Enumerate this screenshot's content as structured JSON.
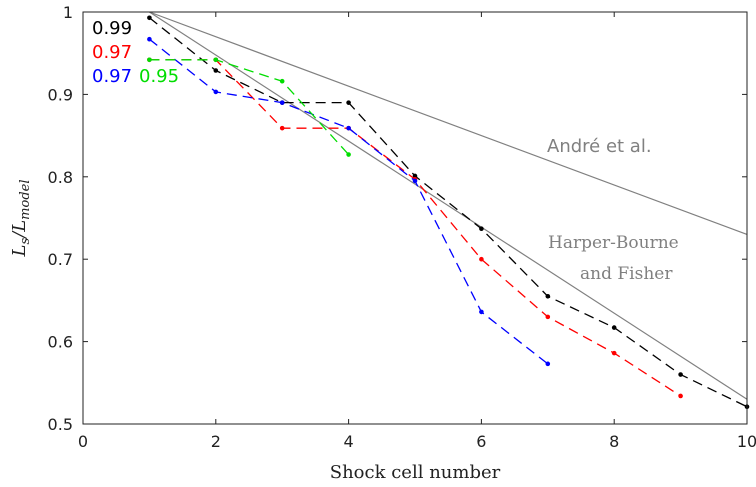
{
  "chart_data": {
    "type": "line",
    "xlabel": "Shock cell number",
    "ylabel": "Ls/Lmodel",
    "xlim": [
      0,
      10
    ],
    "ylim": [
      0.5,
      1
    ],
    "xticks": [
      "0",
      "2",
      "4",
      "6",
      "8",
      "10"
    ],
    "yticks": [
      "0.5",
      "0.6",
      "0.7",
      "0.8",
      "0.9",
      "1"
    ],
    "grid": false,
    "legend_position": "top-left",
    "series": [
      {
        "name": "0.99",
        "color": "#000000",
        "style": "dashed-with-dots",
        "x": [
          1,
          2,
          3,
          4,
          5,
          6,
          7,
          8,
          9,
          10
        ],
        "y": [
          0.993,
          0.929,
          0.89,
          0.89,
          0.801,
          0.737,
          0.655,
          0.617,
          0.56,
          0.521
        ]
      },
      {
        "name": "0.97",
        "color": "#ff0000",
        "style": "dashed-with-dots",
        "x": [
          1,
          2,
          3,
          4,
          5,
          6,
          7,
          8,
          9
        ],
        "y": [
          0.942,
          0.942,
          0.859,
          0.859,
          0.797,
          0.7,
          0.63,
          0.586,
          0.534
        ]
      },
      {
        "name": "0.97",
        "color": "#0000ff",
        "style": "dashed-with-dots",
        "x": [
          1,
          2,
          3,
          4,
          5,
          6,
          7
        ],
        "y": [
          0.967,
          0.903,
          0.89,
          0.859,
          0.795,
          0.636,
          0.573
        ]
      },
      {
        "name": "0.95",
        "color": "#00dd00",
        "style": "dashed-with-dots",
        "x": [
          1,
          2,
          3,
          4
        ],
        "y": [
          0.942,
          0.942,
          0.916,
          0.827
        ]
      }
    ],
    "reference_lines": [
      {
        "name": "André et al.",
        "color": "#808080",
        "x": [
          1,
          10
        ],
        "y": [
          1.0,
          0.73
        ]
      },
      {
        "name": "Harper-Bourne and Fisher",
        "color": "#808080",
        "x": [
          1,
          10
        ],
        "y": [
          1.0,
          0.53
        ]
      }
    ],
    "annotations": {
      "andre": "André et al.",
      "harper_line1": "Harper-Bourne",
      "harper_line2": "and Fisher"
    }
  }
}
